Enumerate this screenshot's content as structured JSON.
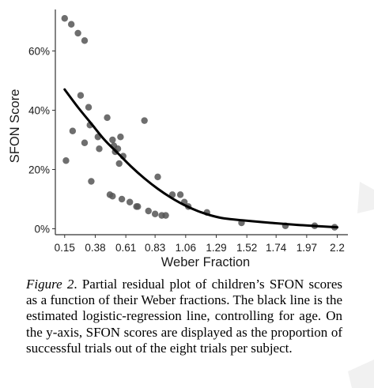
{
  "chart_data": {
    "type": "scatter",
    "xlabel": "Weber Fraction",
    "ylabel": "SFON Score",
    "x_ticks": [
      "0.15",
      "0.38",
      "0.61",
      "0.83",
      "1.06",
      "1.29",
      "1.52",
      "1.74",
      "1.97",
      "2.2"
    ],
    "x_tick_values": [
      0.15,
      0.38,
      0.61,
      0.83,
      1.06,
      1.29,
      1.52,
      1.74,
      1.97,
      2.2
    ],
    "y_ticks": [
      "0%",
      "20%",
      "40%",
      "60%"
    ],
    "y_tick_values": [
      0,
      0.2,
      0.4,
      0.6
    ],
    "xlim": [
      0.08,
      2.28
    ],
    "ylim": [
      -0.02,
      0.74
    ],
    "grid": false,
    "legend": "none",
    "series": [
      {
        "type": "scatter",
        "points": [
          [
            0.15,
            0.71
          ],
          [
            0.2,
            0.69
          ],
          [
            0.25,
            0.66
          ],
          [
            0.3,
            0.635
          ],
          [
            0.16,
            0.23
          ],
          [
            0.21,
            0.33
          ],
          [
            0.27,
            0.45
          ],
          [
            0.3,
            0.29
          ],
          [
            0.33,
            0.41
          ],
          [
            0.34,
            0.35
          ],
          [
            0.35,
            0.16
          ],
          [
            0.4,
            0.31
          ],
          [
            0.41,
            0.27
          ],
          [
            0.47,
            0.375
          ],
          [
            0.49,
            0.115
          ],
          [
            0.51,
            0.11
          ],
          [
            0.51,
            0.3
          ],
          [
            0.52,
            0.28
          ],
          [
            0.53,
            0.26
          ],
          [
            0.55,
            0.27
          ],
          [
            0.56,
            0.22
          ],
          [
            0.57,
            0.31
          ],
          [
            0.58,
            0.1
          ],
          [
            0.59,
            0.245
          ],
          [
            0.64,
            0.09
          ],
          [
            0.69,
            0.075
          ],
          [
            0.7,
            0.075
          ],
          [
            0.75,
            0.365
          ],
          [
            0.78,
            0.06
          ],
          [
            0.83,
            0.05
          ],
          [
            0.85,
            0.175
          ],
          [
            0.88,
            0.045
          ],
          [
            0.91,
            0.045
          ],
          [
            0.96,
            0.115
          ],
          [
            1.02,
            0.115
          ],
          [
            1.05,
            0.09
          ],
          [
            1.08,
            0.075
          ],
          [
            1.22,
            0.055
          ],
          [
            1.48,
            0.02
          ],
          [
            1.81,
            0.01
          ],
          [
            2.03,
            0.01
          ],
          [
            2.18,
            0.005
          ]
        ]
      },
      {
        "type": "line",
        "points": [
          [
            0.15,
            0.47
          ],
          [
            0.25,
            0.41
          ],
          [
            0.35,
            0.355
          ],
          [
            0.45,
            0.3
          ],
          [
            0.55,
            0.255
          ],
          [
            0.65,
            0.21
          ],
          [
            0.75,
            0.17
          ],
          [
            0.85,
            0.135
          ],
          [
            0.95,
            0.105
          ],
          [
            1.05,
            0.08
          ],
          [
            1.15,
            0.06
          ],
          [
            1.25,
            0.045
          ],
          [
            1.35,
            0.035
          ],
          [
            1.5,
            0.028
          ],
          [
            1.7,
            0.02
          ],
          [
            1.9,
            0.013
          ],
          [
            2.2,
            0.005
          ]
        ]
      }
    ]
  },
  "caption": {
    "label": "Figure 2",
    "text": ". Partial residual plot of children’s SFON scores as a function of their Weber fractions. The black line is the estimated logistic-regression line, controlling for age. On the y-axis, SFON scores are displayed as the proportion of successful trials out of the eight trials per subject."
  },
  "colors": {
    "points": "#555555",
    "line": "#000000",
    "axis": "#333333",
    "watermark": "#f1f1f1"
  }
}
